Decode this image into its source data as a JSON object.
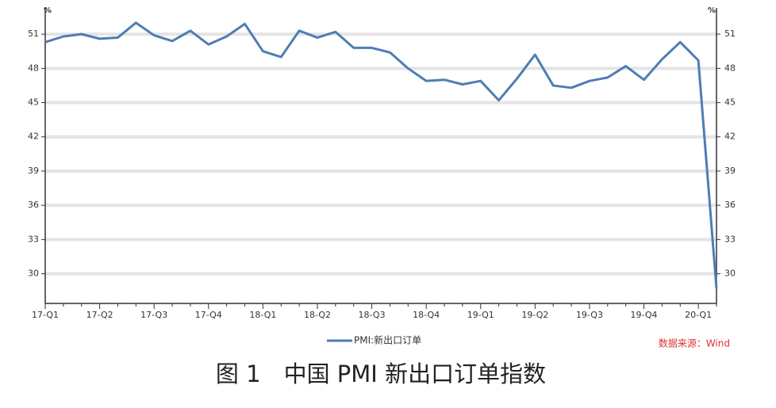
{
  "chart_data": {
    "type": "line",
    "title": "图 1　中国 PMI 新出口订单指数",
    "source": "数据来源：Wind",
    "y_unit": "%",
    "categories": [
      "17-Q1",
      null,
      null,
      "17-Q2",
      null,
      null,
      "17-Q3",
      null,
      null,
      "17-Q4",
      null,
      null,
      "18-Q1",
      null,
      null,
      "18-Q2",
      null,
      null,
      "18-Q3",
      null,
      null,
      "18-Q4",
      null,
      null,
      "19-Q1",
      null,
      null,
      "19-Q2",
      null,
      null,
      "19-Q3",
      null,
      null,
      "19-Q4",
      null,
      null,
      "20-Q1",
      null
    ],
    "series": [
      {
        "name": "PMI:新出口订单",
        "color": "#4f7db3",
        "values": [
          50.3,
          50.8,
          51.0,
          50.6,
          50.7,
          52.0,
          50.9,
          50.4,
          51.3,
          50.1,
          50.8,
          51.9,
          49.5,
          49.0,
          51.3,
          50.7,
          51.2,
          49.8,
          49.8,
          49.4,
          48.0,
          46.9,
          47.0,
          46.6,
          46.9,
          45.2,
          47.1,
          49.2,
          46.5,
          46.3,
          46.9,
          47.2,
          48.2,
          47.0,
          48.8,
          50.3,
          48.7,
          28.7
        ]
      }
    ],
    "ylim": [
      27.4,
      53.3
    ],
    "yticks": [
      30,
      33,
      36,
      39,
      42,
      45,
      48,
      51
    ],
    "grid": true
  }
}
